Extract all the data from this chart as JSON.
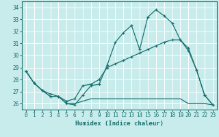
{
  "xlabel": "Humidex (Indice chaleur)",
  "bg_color": "#c8ecec",
  "grid_color": "#ffffff",
  "line_color": "#1a7070",
  "xlim": [
    -0.5,
    23.5
  ],
  "ylim": [
    25.5,
    34.5
  ],
  "yticks": [
    26,
    27,
    28,
    29,
    30,
    31,
    32,
    33,
    34
  ],
  "xticks": [
    0,
    1,
    2,
    3,
    4,
    5,
    6,
    7,
    8,
    9,
    10,
    11,
    12,
    13,
    14,
    15,
    16,
    17,
    18,
    19,
    20,
    21,
    22,
    23
  ],
  "line1_x": [
    0,
    1,
    2,
    3,
    4,
    5,
    6,
    7,
    8,
    9,
    10,
    11,
    12,
    13,
    14,
    15,
    16,
    17,
    18,
    19,
    20,
    21,
    22,
    23
  ],
  "line1_y": [
    28.7,
    27.7,
    27.1,
    26.6,
    26.6,
    26.0,
    25.9,
    26.7,
    27.5,
    27.6,
    29.2,
    31.1,
    31.9,
    32.5,
    30.5,
    33.2,
    33.8,
    33.3,
    32.7,
    31.3,
    30.6,
    28.8,
    26.7,
    25.9
  ],
  "line2_x": [
    0,
    1,
    2,
    3,
    4,
    5,
    6,
    7,
    8,
    9,
    10,
    11,
    12,
    13,
    14,
    15,
    16,
    17,
    18,
    19,
    20,
    21,
    22,
    23
  ],
  "line2_y": [
    28.7,
    27.7,
    27.1,
    26.8,
    26.6,
    26.2,
    26.4,
    27.5,
    27.6,
    28.0,
    29.0,
    29.3,
    29.6,
    29.9,
    30.2,
    30.5,
    30.8,
    31.1,
    31.3,
    31.3,
    30.4,
    28.8,
    26.7,
    25.9
  ],
  "line3_x": [
    0,
    1,
    2,
    3,
    4,
    5,
    6,
    7,
    8,
    9,
    10,
    11,
    12,
    13,
    14,
    15,
    16,
    17,
    18,
    19,
    20,
    21,
    22,
    23
  ],
  "line3_y": [
    28.7,
    27.7,
    27.1,
    26.6,
    26.6,
    26.0,
    26.0,
    26.2,
    26.4,
    26.4,
    26.4,
    26.4,
    26.4,
    26.4,
    26.4,
    26.4,
    26.4,
    26.4,
    26.4,
    26.4,
    26.0,
    26.0,
    26.0,
    25.9
  ]
}
